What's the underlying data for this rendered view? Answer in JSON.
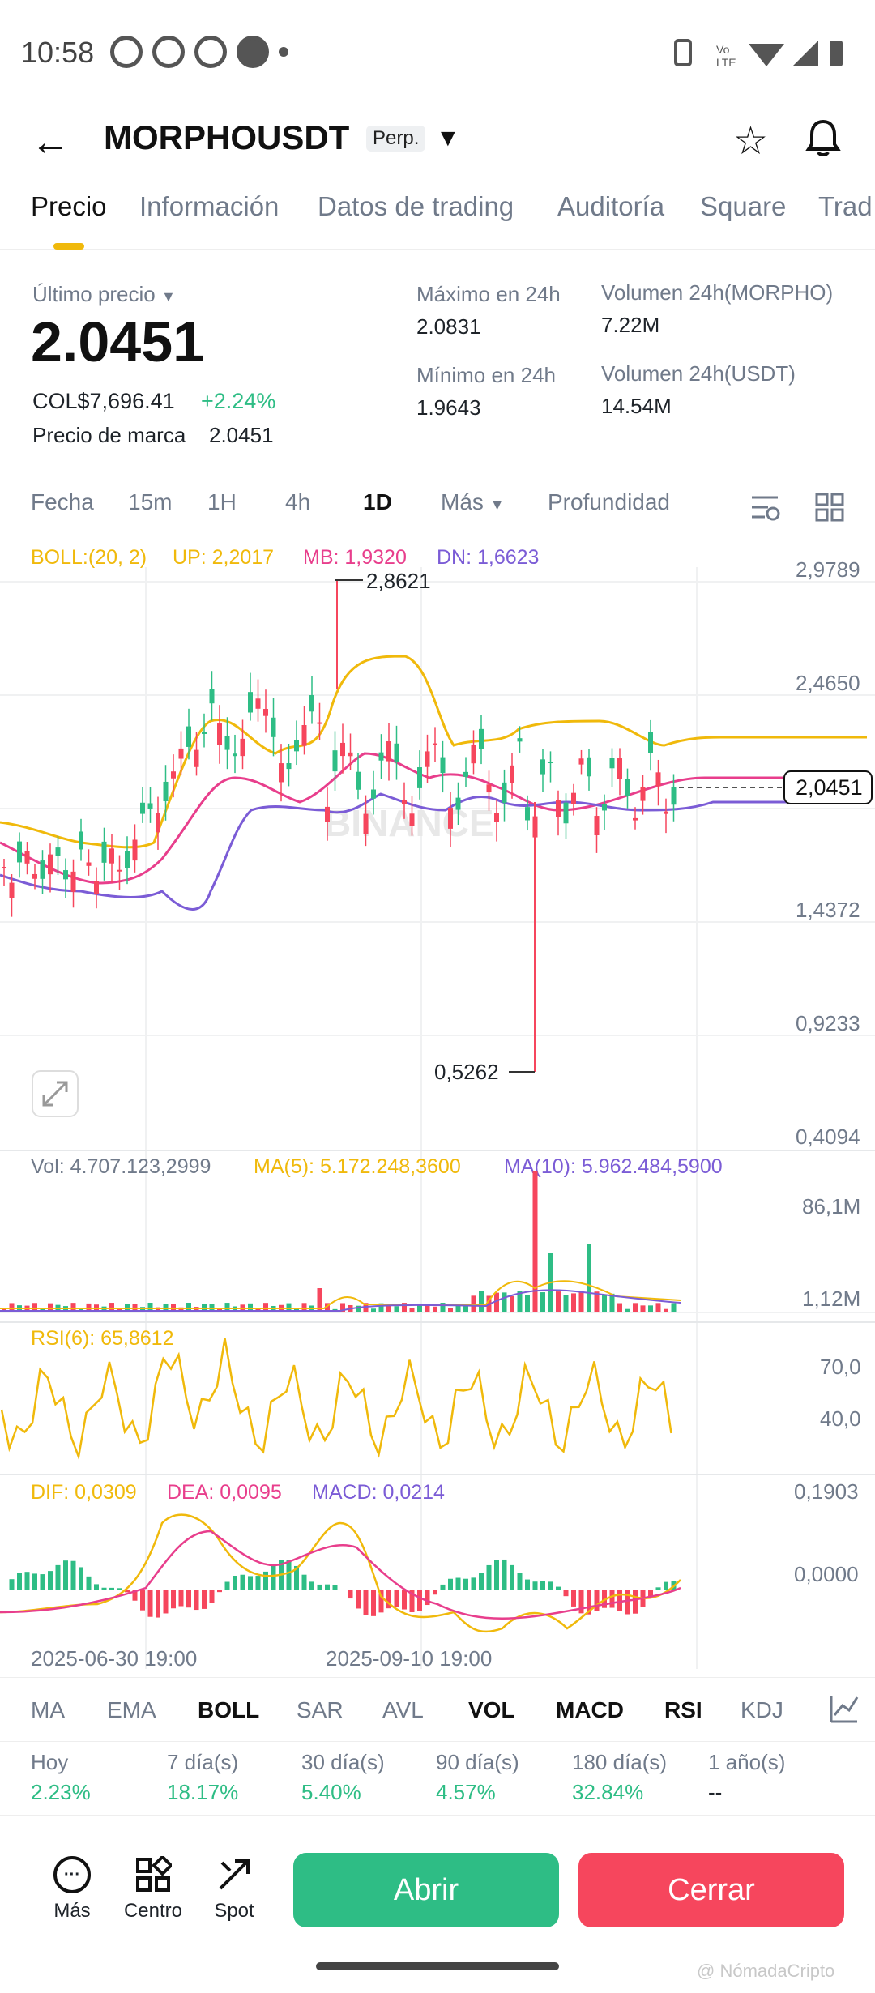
{
  "status_bar": {
    "time": "10:58",
    "icons_left": [
      "whatsapp-icon",
      "whatsapp-icon",
      "whatsapp-icon",
      "facebook-icon",
      "dot-icon"
    ],
    "icons_right": [
      "vibrate-icon",
      "volte-icon",
      "wifi-icon",
      "signal-icon",
      "battery-icon"
    ]
  },
  "header": {
    "symbol": "MORPHOUSDT",
    "badge": "Perp.",
    "back_icon": "arrow-left-icon",
    "star_icon": "star-icon",
    "bell_icon": "bell-icon"
  },
  "tabs": [
    "Precio",
    "Información",
    "Datos de trading",
    "Auditoría",
    "Square",
    "Trad"
  ],
  "price_block": {
    "last_price_label": "Último precio",
    "last_price": "2.0451",
    "fiat": "COL$7,696.41",
    "change": "+2.24%",
    "mark_label": "Precio de marca",
    "mark_value": "2.0451",
    "high_label": "Máximo en 24h",
    "high_value": "2.0831",
    "low_label": "Mínimo en 24h",
    "low_value": "1.9643",
    "vol_base_label": "Volumen 24h(MORPHO)",
    "vol_base_value": "7.22M",
    "vol_quote_label": "Volumen 24h(USDT)",
    "vol_quote_value": "14.54M"
  },
  "intervals": [
    "Fecha",
    "15m",
    "1H",
    "4h",
    "1D",
    "Más",
    "Profundidad"
  ],
  "active_interval": "1D",
  "boll_legend": {
    "label": "BOLL:(20, 2)",
    "up": "UP: 2,2017",
    "mb": "MB: 1,9320",
    "dn": "DN: 1,6623"
  },
  "price_axis": [
    "2,9789",
    "2,4650",
    "1,4372",
    "0,9233",
    "0,4094"
  ],
  "current_price_tag": "2,0451",
  "max_marker": "2,8621",
  "min_marker": "0,5262",
  "watermark_text": "BINANCE",
  "vol_legend": {
    "vol": "Vol: 4.707.123,2999",
    "ma5": "MA(5): 5.172.248,3600",
    "ma10": "MA(10): 5.962.484,5900"
  },
  "vol_axis": [
    "86,1M",
    "1,12M"
  ],
  "rsi_legend": "RSI(6): 65,8612",
  "rsi_axis": [
    "70,0",
    "40,0"
  ],
  "macd_legend": {
    "dif": "DIF: 0,0309",
    "dea": "DEA: 0,0095",
    "macd": "MACD: 0,0214"
  },
  "macd_axis": [
    "0,1903",
    "0,0000"
  ],
  "date_axis": [
    "2025-06-30 19:00",
    "2025-09-10 19:00"
  ],
  "indicators": [
    "MA",
    "EMA",
    "BOLL",
    "SAR",
    "AVL",
    "VOL",
    "MACD",
    "RSI",
    "KDJ"
  ],
  "active_indicators": [
    "BOLL",
    "VOL",
    "MACD",
    "RSI"
  ],
  "performance": [
    {
      "label": "Hoy",
      "value": "2.23%"
    },
    {
      "label": "7 día(s)",
      "value": "18.17%"
    },
    {
      "label": "30 día(s)",
      "value": "5.40%"
    },
    {
      "label": "90 día(s)",
      "value": "4.57%"
    },
    {
      "label": "180 día(s)",
      "value": "32.84%"
    },
    {
      "label": "1 año(s)",
      "value": "--"
    }
  ],
  "bottom_nav": [
    {
      "label": "Más",
      "icon": "more-icon"
    },
    {
      "label": "Centro",
      "icon": "grid-icon"
    },
    {
      "label": "Spot",
      "icon": "spot-icon"
    }
  ],
  "buttons": {
    "open": "Abrir",
    "close": "Cerrar"
  },
  "watermark_footer": "@ NómadaCripto",
  "colors": {
    "up": "#2ebd85",
    "down": "#f6465d",
    "boll_up": "#f0b90b",
    "boll_mb": "#e83e8c",
    "boll_dn": "#7b5cd6",
    "accent": "#f0b90b"
  },
  "chart_data": {
    "type": "candlestick",
    "price_axis_range": [
      0.4094,
      2.9789
    ],
    "max": 2.8621,
    "min": 0.5262,
    "last": 2.0451,
    "boll": {
      "up": 2.2017,
      "mb": 1.932,
      "dn": 1.6623
    }
  }
}
